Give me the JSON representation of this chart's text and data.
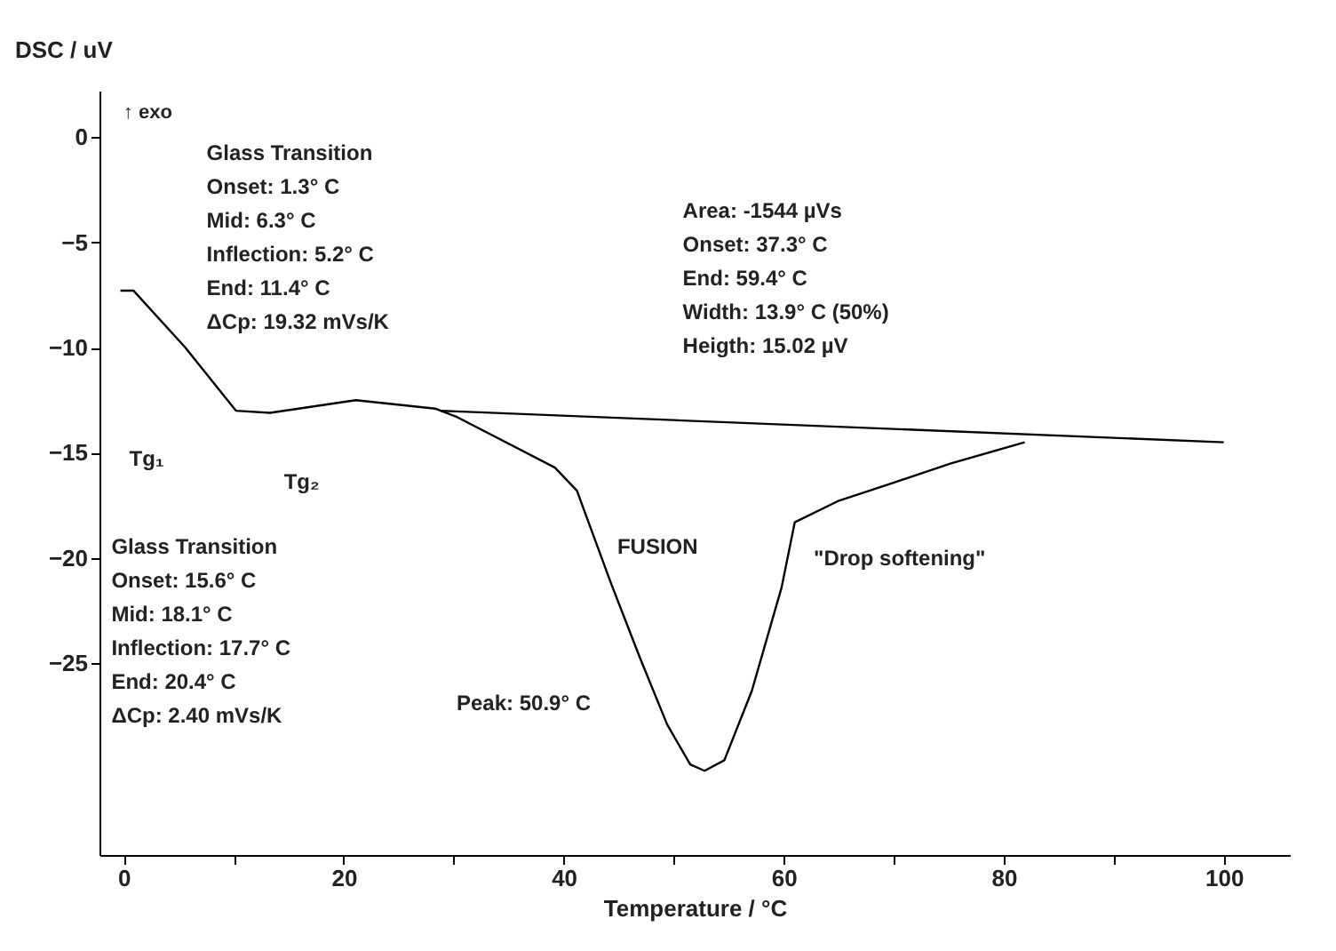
{
  "chart_data": {
    "type": "line",
    "xlabel": "Temperature / °C",
    "ylabel": "DSC / uV",
    "xlim": [
      -2.2,
      106
    ],
    "ylim": [
      -34.1,
      2.2
    ],
    "xticks": [
      0,
      {
        "value": 10,
        "label": null
      },
      20,
      {
        "value": 30,
        "label": null
      },
      40,
      {
        "value": 50,
        "label": null
      },
      60,
      {
        "value": 70,
        "label": null
      },
      80,
      {
        "value": 90,
        "label": null
      },
      100
    ],
    "yticks": [
      0,
      -5,
      -10,
      -15,
      -20,
      -25
    ],
    "marker": "none",
    "line_style": "solid",
    "series": [
      {
        "color": "#000000",
        "x": [
          -0.3,
          0.9,
          5.6,
          10.2,
          13.3,
          21.1,
          28.3,
          30.3,
          39.2,
          41.2,
          44.3,
          46.9,
          49.4,
          51.5,
          52.8,
          54.6,
          57.1,
          59.8,
          61.0,
          64.9,
          70.1,
          75.2,
          81.9
        ],
        "values": [
          -7.3,
          -7.3,
          -10.0,
          -13.0,
          -13.1,
          -12.5,
          -12.9,
          -13.3,
          -15.7,
          -16.8,
          -21.2,
          -24.7,
          -27.9,
          -29.8,
          -30.1,
          -29.6,
          -26.3,
          -21.4,
          -18.3,
          -17.3,
          -16.4,
          -15.5,
          -14.5
        ]
      },
      {
        "color": "#000000",
        "x": [
          28.8,
          100
        ],
        "values": [
          -13.0,
          -14.5
        ]
      }
    ],
    "annotations": [
      "↑ exo",
      "Glass Transition\nOnset: 1.3° C\nMid: 6.3° C\nInflection: 5.2° C\nEnd: 11.4° C\nΔCp: 19.32 mVs/K",
      "Tg₁",
      "Tg₂",
      "Glass Transition\nOnset: 15.6° C\nMid: 18.1° C\nInflection: 17.7° C\nEnd: 20.4° C\nΔCp: 2.40 mVs/K",
      "Area: -1544 µVs\nOnset: 37.3° C\nEnd: 59.4° C\nWidth: 13.9° C (50%)\nHeigth: 15.02 µV",
      "FUSION",
      "\"Drop softening\"",
      "Peak: 50.9° C"
    ]
  }
}
